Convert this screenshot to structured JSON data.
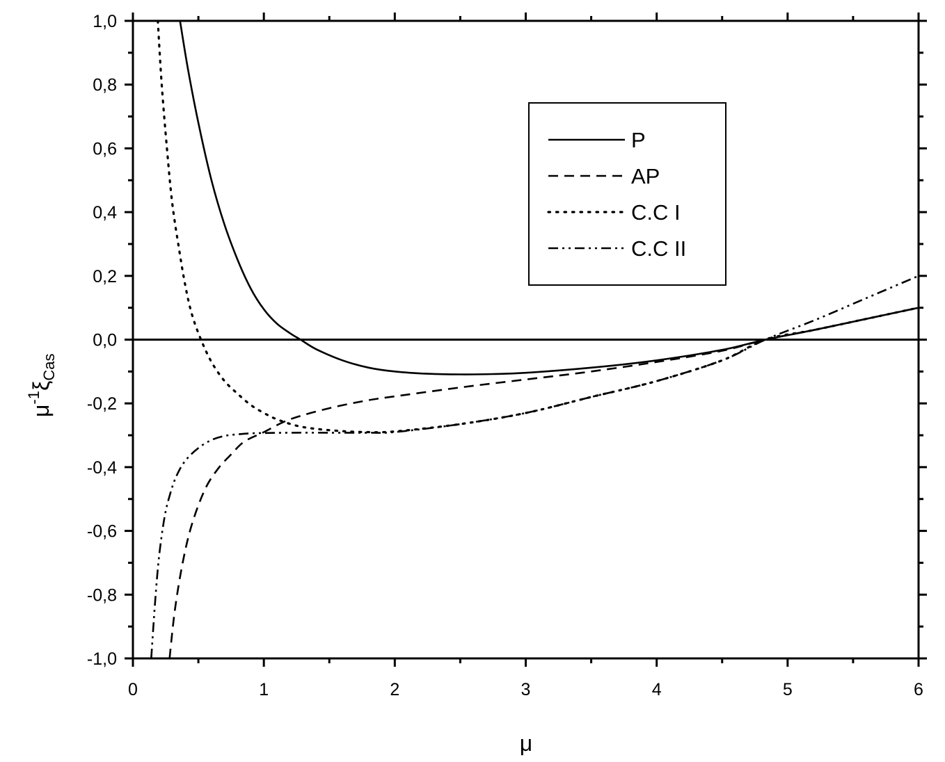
{
  "chart_data": {
    "type": "line",
    "title": "",
    "xlabel": "μ",
    "ylabel": {
      "base": "μ",
      "sup": "-1",
      "main": "ξ",
      "sub": "Cas"
    },
    "xlim": [
      0,
      6
    ],
    "ylim": [
      -1.0,
      1.0
    ],
    "grid": false,
    "x_ticks": [
      0,
      1,
      2,
      3,
      4,
      5,
      6
    ],
    "x_tick_labels": [
      "0",
      "1",
      "2",
      "3",
      "4",
      "5",
      "6"
    ],
    "y_ticks": [
      1.0,
      0.8,
      0.6,
      0.4,
      0.2,
      0.0,
      -0.2,
      -0.4,
      -0.6,
      -0.8,
      -1.0
    ],
    "y_tick_labels": [
      "1,0",
      "0,8",
      "0,6",
      "0,4",
      "0,2",
      "0,0",
      "-0,2",
      "-0,4",
      "-0,6",
      "-0,8",
      "-1,0"
    ],
    "reference_line": {
      "y": 0.0
    },
    "legend": {
      "position": "upper-right-inner",
      "entries": [
        "P",
        "AP",
        "C.C I",
        "C.C II"
      ]
    },
    "series": [
      {
        "name": "P",
        "style": "solid",
        "x": [
          0.36,
          0.42,
          0.5,
          0.6,
          0.7,
          0.8,
          0.9,
          1.0,
          1.1,
          1.2,
          1.28,
          1.4,
          1.6,
          1.8,
          2.0,
          2.25,
          2.5,
          2.75,
          3.0,
          3.5,
          4.0,
          4.5,
          4.83,
          5.2,
          5.6,
          6.0
        ],
        "values": [
          1.0,
          0.85,
          0.68,
          0.5,
          0.36,
          0.25,
          0.16,
          0.095,
          0.05,
          0.02,
          0.0,
          -0.03,
          -0.065,
          -0.088,
          -0.1,
          -0.107,
          -0.109,
          -0.108,
          -0.104,
          -0.088,
          -0.065,
          -0.032,
          0.0,
          0.03,
          0.065,
          0.1
        ]
      },
      {
        "name": "AP",
        "style": "dashed",
        "x": [
          0.28,
          0.32,
          0.38,
          0.45,
          0.55,
          0.65,
          0.75,
          0.85,
          1.0,
          1.2,
          1.5,
          1.8,
          2.0,
          2.5,
          3.0,
          3.5,
          4.0,
          4.5,
          4.83,
          5.2,
          5.6,
          6.0
        ],
        "values": [
          -1.0,
          -0.85,
          -0.7,
          -0.58,
          -0.47,
          -0.405,
          -0.36,
          -0.32,
          -0.29,
          -0.25,
          -0.215,
          -0.19,
          -0.178,
          -0.15,
          -0.125,
          -0.1,
          -0.07,
          -0.035,
          0.0,
          0.03,
          0.065,
          0.1
        ]
      },
      {
        "name": "C.C I",
        "style": "dotted",
        "x": [
          0.19,
          0.22,
          0.26,
          0.3,
          0.35,
          0.4,
          0.45,
          0.52,
          0.6,
          0.7,
          0.8,
          0.9,
          1.0,
          1.1,
          1.25,
          1.4,
          1.6,
          1.8,
          2.0,
          2.5,
          3.0,
          3.5,
          4.0,
          4.5,
          4.83,
          5.2,
          5.6,
          6.0
        ],
        "values": [
          1.0,
          0.8,
          0.6,
          0.43,
          0.29,
          0.17,
          0.08,
          0.0,
          -0.07,
          -0.13,
          -0.17,
          -0.205,
          -0.23,
          -0.25,
          -0.27,
          -0.28,
          -0.287,
          -0.29,
          -0.288,
          -0.265,
          -0.23,
          -0.18,
          -0.13,
          -0.065,
          0.0,
          0.03,
          0.065,
          0.1
        ]
      },
      {
        "name": "C.C II",
        "style": "dash-dot-dot",
        "x": [
          0.14,
          0.17,
          0.2,
          0.24,
          0.28,
          0.33,
          0.4,
          0.5,
          0.6,
          0.7,
          0.8,
          0.9,
          1.0,
          1.2,
          1.5,
          1.8,
          2.0,
          2.5,
          3.0,
          3.5,
          4.0,
          4.5,
          4.83,
          5.2,
          5.6,
          6.0
        ],
        "values": [
          -1.0,
          -0.82,
          -0.68,
          -0.56,
          -0.49,
          -0.43,
          -0.38,
          -0.34,
          -0.315,
          -0.302,
          -0.297,
          -0.294,
          -0.293,
          -0.292,
          -0.292,
          -0.292,
          -0.29,
          -0.265,
          -0.23,
          -0.18,
          -0.13,
          -0.065,
          0.0,
          0.06,
          0.13,
          0.2
        ]
      }
    ]
  }
}
